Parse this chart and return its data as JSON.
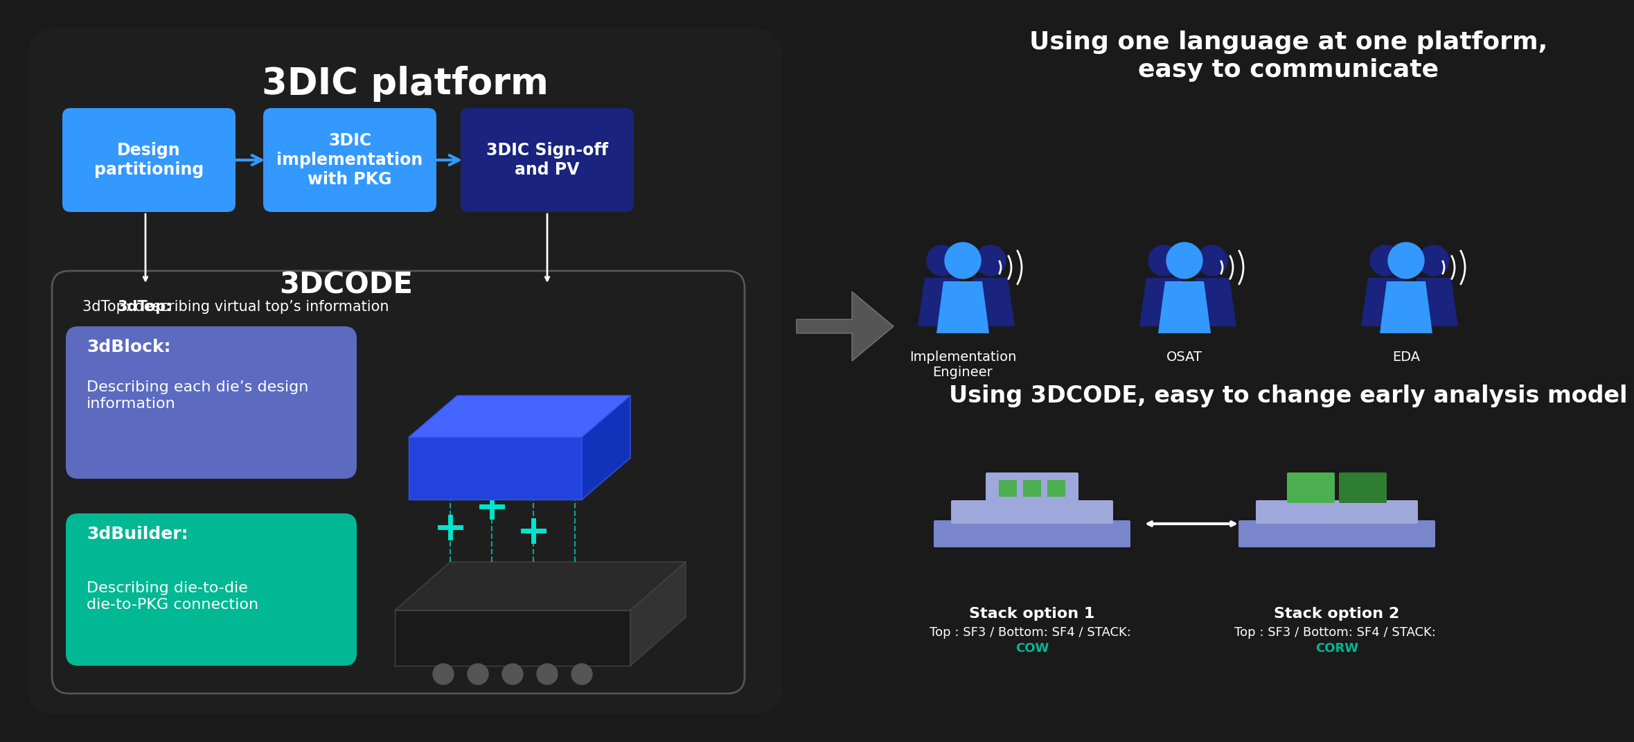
{
  "bg_color": "#1a1a1a",
  "left_panel_bg": "#222222",
  "title_left": "3DIC platform",
  "title_right_top": "Using one language at one platform,\neasy to communicate",
  "title_right_bottom": "Using 3DCODE, easy to change early analysis model",
  "box1_color": "#3399ff",
  "box1_text": "Design\npartitioning",
  "box2_color": "#3399ff",
  "box2_text": "3DIC\nimplementation\nwith PKG",
  "box3_color": "#1a237e",
  "box3_text": "3DIC Sign-off\nand PV",
  "code_title": "3DCODE",
  "code_subtitle": "3dTop: describing virtual top’s information",
  "block_color": "#5c6bc0",
  "block_title": "3dBlock:",
  "block_text": "Describing each die’s design\ninformation",
  "builder_color": "#00b894",
  "builder_title": "3dBuilder:",
  "builder_text": "Describing die-to-die\ndie-to-PKG connection",
  "stack1_label": "Stack option 1",
  "stack1_sub": "Top : SF3 / Bottom: SF4 / STACK: COW",
  "stack1_sub_color": "#00b894",
  "stack2_label": "Stack option 2",
  "stack2_sub": "Top : SF3 / Bottom: SF4 / STACK: CORW",
  "stack2_sub_color": "#00b894",
  "groups": [
    "Implementation\nEngineer",
    "OSAT",
    "EDA"
  ],
  "white": "#ffffff",
  "cyan": "#00e5cc",
  "blue_person": "#3399ff",
  "dark_blue_person": "#1a237e"
}
